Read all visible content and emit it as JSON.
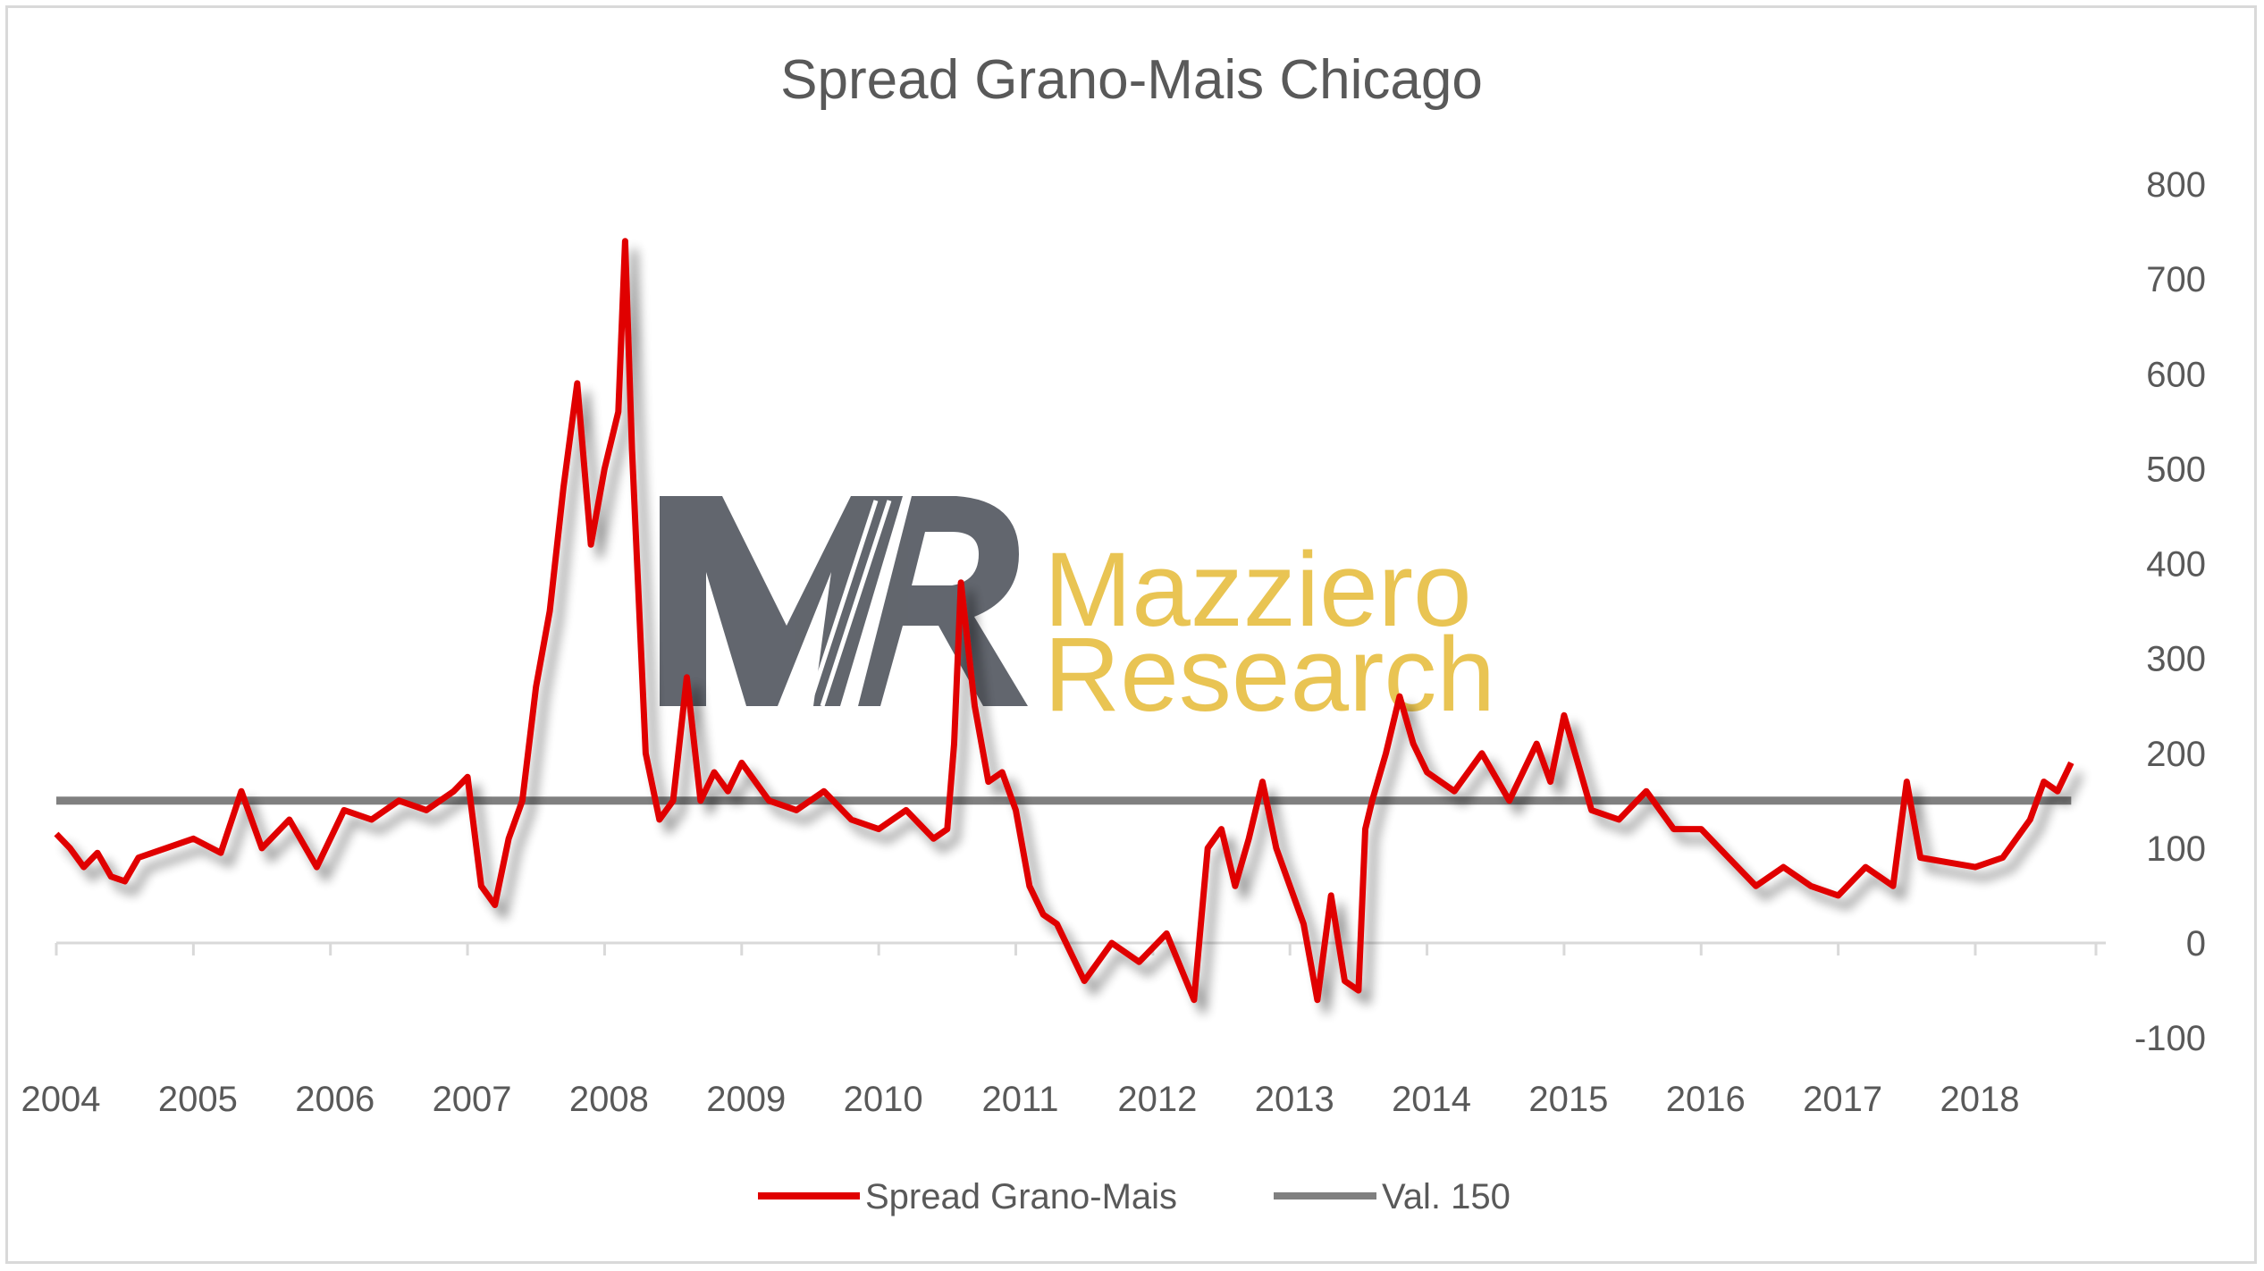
{
  "chart_data": {
    "type": "line",
    "title": "Spread Grano-Mais Chicago",
    "xlabel": "",
    "ylabel": "",
    "x_ticks": [
      "2004",
      "2005",
      "2006",
      "2007",
      "2008",
      "2009",
      "2010",
      "2011",
      "2012",
      "2013",
      "2014",
      "2015",
      "2016",
      "2017",
      "2018"
    ],
    "y_ticks": [
      800,
      700,
      600,
      500,
      400,
      300,
      200,
      100,
      0,
      -100
    ],
    "ylim": [
      -100,
      800
    ],
    "xlim": [
      2004.0,
      2018.9
    ],
    "y_axis_position": "right",
    "grid": false,
    "legend_position": "bottom",
    "series": [
      {
        "name": "Spread Grano-Mais",
        "color": "#e00000",
        "x": [
          2004.0,
          2004.1,
          2004.2,
          2004.3,
          2004.4,
          2004.5,
          2004.6,
          2004.8,
          2005.0,
          2005.2,
          2005.35,
          2005.5,
          2005.7,
          2005.9,
          2006.1,
          2006.3,
          2006.5,
          2006.7,
          2006.9,
          2007.0,
          2007.1,
          2007.2,
          2007.3,
          2007.4,
          2007.5,
          2007.6,
          2007.7,
          2007.8,
          2007.9,
          2008.0,
          2008.1,
          2008.15,
          2008.2,
          2008.3,
          2008.4,
          2008.5,
          2008.6,
          2008.7,
          2008.8,
          2008.9,
          2009.0,
          2009.2,
          2009.4,
          2009.6,
          2009.8,
          2010.0,
          2010.2,
          2010.4,
          2010.5,
          2010.55,
          2010.6,
          2010.7,
          2010.8,
          2010.9,
          2011.0,
          2011.1,
          2011.2,
          2011.3,
          2011.5,
          2011.7,
          2011.9,
          2012.1,
          2012.3,
          2012.4,
          2012.5,
          2012.6,
          2012.7,
          2012.8,
          2012.9,
          2013.0,
          2013.1,
          2013.2,
          2013.3,
          2013.4,
          2013.5,
          2013.55,
          2013.6,
          2013.7,
          2013.8,
          2013.9,
          2014.0,
          2014.2,
          2014.4,
          2014.6,
          2014.8,
          2014.9,
          2015.0,
          2015.2,
          2015.4,
          2015.6,
          2015.8,
          2016.0,
          2016.2,
          2016.4,
          2016.6,
          2016.8,
          2017.0,
          2017.2,
          2017.4,
          2017.5,
          2017.6,
          2017.8,
          2018.0,
          2018.2,
          2018.4,
          2018.5,
          2018.6,
          2018.7
        ],
        "y": [
          115,
          100,
          80,
          95,
          70,
          65,
          90,
          100,
          110,
          95,
          160,
          100,
          130,
          80,
          140,
          130,
          150,
          140,
          160,
          175,
          60,
          40,
          110,
          150,
          270,
          350,
          480,
          590,
          420,
          500,
          560,
          740,
          520,
          200,
          130,
          150,
          280,
          150,
          180,
          160,
          190,
          150,
          140,
          160,
          130,
          120,
          140,
          110,
          120,
          210,
          380,
          250,
          170,
          180,
          140,
          60,
          30,
          20,
          -40,
          0,
          -20,
          10,
          -60,
          100,
          120,
          60,
          110,
          170,
          100,
          60,
          20,
          -60,
          50,
          -40,
          -50,
          120,
          150,
          200,
          260,
          210,
          180,
          160,
          200,
          150,
          210,
          170,
          240,
          140,
          130,
          160,
          120,
          120,
          90,
          60,
          80,
          60,
          50,
          80,
          60,
          170,
          90,
          85,
          80,
          90,
          130,
          170,
          160,
          190
        ]
      },
      {
        "name": "Val. 150",
        "color": "#808080",
        "x": [
          2004.0,
          2018.7
        ],
        "y": [
          150,
          150
        ]
      }
    ]
  },
  "watermark": {
    "logo_letters": "MR",
    "line1": "Mazziero",
    "line2": "Research"
  }
}
